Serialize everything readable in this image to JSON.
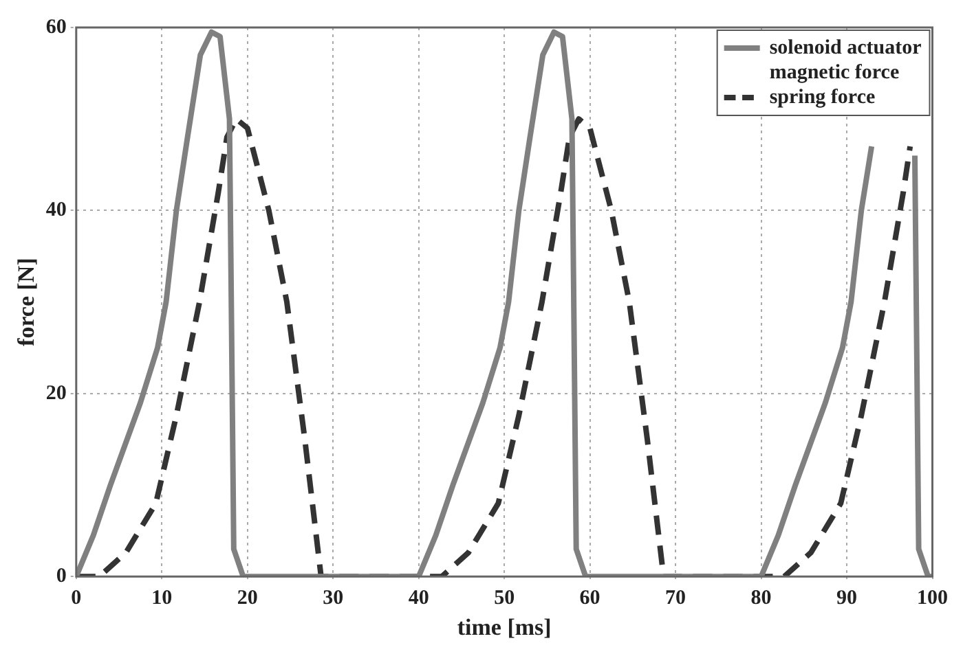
{
  "chart_data": {
    "type": "line",
    "xlabel": "time [ms]",
    "ylabel": "force [N]",
    "xlim": [
      0,
      100
    ],
    "ylim": [
      0,
      60
    ],
    "xticks": [
      0,
      10,
      20,
      30,
      40,
      50,
      60,
      70,
      80,
      90,
      100
    ],
    "yticks": [
      0,
      20,
      40,
      60
    ],
    "grid": true,
    "legend": "top right",
    "marker": "none",
    "series": [
      {
        "name": "solenoid actuator magnetic force",
        "color": "#808080",
        "line_style": "solid",
        "x": [
          0,
          2,
          4,
          7.5,
          9.5,
          10.5,
          11.7,
          13,
          14.5,
          15.8,
          16.8,
          17.9,
          18.4,
          19.5,
          40,
          42,
          44,
          47.5,
          49.5,
          50.5,
          51.7,
          53,
          54.5,
          55.8,
          56.8,
          57.9,
          58.4,
          59.5,
          80,
          82,
          84,
          87.5,
          89.5,
          90.5,
          91.7,
          92.9,
          95.8,
          97.95,
          98.4,
          99.5,
          100
        ],
        "values": [
          0,
          4.5,
          10,
          19,
          25,
          30,
          40,
          48,
          57,
          59.5,
          59,
          50,
          3,
          0,
          0,
          4.5,
          10,
          19,
          25,
          30,
          40,
          48,
          57,
          59.5,
          59,
          50,
          3,
          0,
          0,
          4.5,
          10,
          19,
          25,
          30,
          40,
          47,
          null,
          46,
          3,
          0,
          0
        ]
      },
      {
        "name": "spring force",
        "color": "#333333",
        "line_style": "dashed",
        "x": [
          0,
          2.7,
          5.8,
          9.3,
          11.7,
          14.4,
          16.6,
          17.6,
          18.7,
          20,
          22.5,
          24.6,
          26.7,
          28.6,
          40,
          42.7,
          45.8,
          49.3,
          51.7,
          54.4,
          56.6,
          57.6,
          58.7,
          60,
          62.5,
          64.6,
          66.7,
          68.6,
          80,
          82.7,
          85.8,
          89.3,
          91.7,
          94.4,
          96.6,
          97.4
        ],
        "values": [
          0,
          0,
          2.6,
          8,
          17.6,
          30,
          42,
          48,
          50,
          49,
          40,
          30,
          15,
          0,
          0,
          0,
          2.6,
          8,
          17.6,
          30,
          42,
          48,
          50,
          49,
          40,
          30,
          15,
          0,
          0,
          0,
          2.6,
          8,
          17.6,
          30,
          42,
          47
        ]
      }
    ]
  }
}
